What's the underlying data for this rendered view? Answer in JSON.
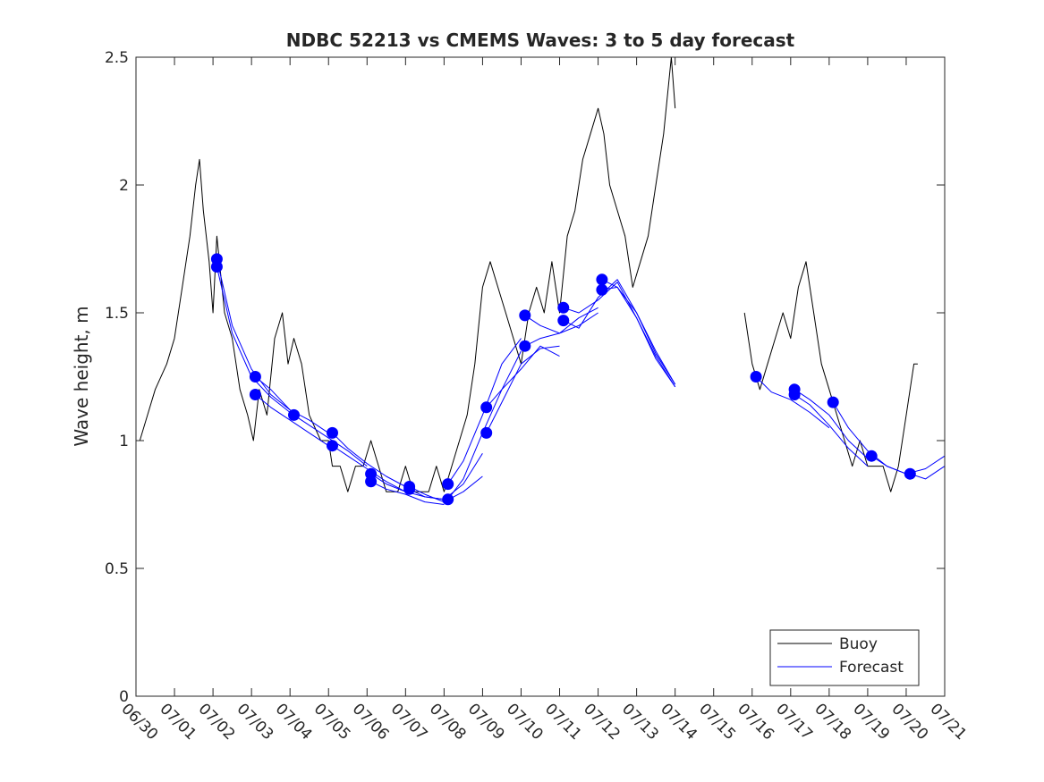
{
  "chart_data": {
    "type": "line",
    "title": "NDBC 52213 vs CMEMS Waves: 3 to 5 day forecast",
    "xlabel": "",
    "ylabel": "Wave height, m",
    "xlim": [
      0,
      21
    ],
    "ylim": [
      0,
      2.5
    ],
    "x_tick_labels": [
      "06/30",
      "07/01",
      "07/02",
      "07/03",
      "07/04",
      "07/05",
      "07/06",
      "07/07",
      "07/08",
      "07/09",
      "07/10",
      "07/11",
      "07/12",
      "07/13",
      "07/14",
      "07/15",
      "07/16",
      "07/17",
      "07/18",
      "07/19",
      "07/20",
      "07/21"
    ],
    "y_ticks": [
      0,
      0.5,
      1,
      1.5,
      2,
      2.5
    ],
    "y_tick_labels": [
      "0",
      "0.5",
      "1",
      "1.5",
      "2",
      "2.5"
    ],
    "legend": {
      "position": "bottom-right",
      "entries": [
        "Buoy",
        "Forecast"
      ]
    },
    "colors": {
      "buoy": "#000000",
      "forecast": "#0000ff"
    },
    "series": [
      {
        "name": "Buoy",
        "x": [
          0.1,
          0.3,
          0.5,
          0.8,
          1.0,
          1.2,
          1.4,
          1.55,
          1.65,
          1.75,
          1.9,
          2.0,
          2.1,
          2.3,
          2.5,
          2.7,
          2.9,
          3.05,
          3.2,
          3.4,
          3.6,
          3.8,
          3.95,
          4.1,
          4.3,
          4.5,
          4.8,
          5.0,
          5.1,
          5.3,
          5.5,
          5.7,
          5.9,
          6.1,
          6.3,
          6.5,
          6.8,
          7.0,
          7.2,
          7.4,
          7.6,
          7.8,
          8.0,
          8.2,
          8.4,
          8.6,
          8.8,
          9.0,
          9.2,
          9.4,
          9.6,
          9.8,
          10.0,
          10.2,
          10.4,
          10.6,
          10.8,
          11.0,
          11.2,
          11.4,
          11.6,
          11.8,
          12.0,
          12.15,
          12.3,
          12.5,
          12.7,
          12.9,
          13.1,
          13.3,
          13.5,
          13.7,
          13.9,
          14.0
        ],
        "y": [
          1.0,
          1.1,
          1.2,
          1.3,
          1.4,
          1.6,
          1.8,
          2.0,
          2.1,
          1.9,
          1.7,
          1.5,
          1.8,
          1.5,
          1.4,
          1.2,
          1.1,
          1.0,
          1.2,
          1.1,
          1.4,
          1.5,
          1.3,
          1.4,
          1.3,
          1.1,
          1.0,
          1.0,
          0.9,
          0.9,
          0.8,
          0.9,
          0.9,
          1.0,
          0.9,
          0.8,
          0.8,
          0.9,
          0.8,
          0.8,
          0.8,
          0.9,
          0.8,
          0.9,
          1.0,
          1.1,
          1.3,
          1.6,
          1.7,
          1.6,
          1.5,
          1.4,
          1.3,
          1.5,
          1.6,
          1.5,
          1.7,
          1.5,
          1.8,
          1.9,
          2.1,
          2.2,
          2.3,
          2.2,
          2.0,
          1.9,
          1.8,
          1.6,
          1.7,
          1.8,
          2.0,
          2.2,
          2.5,
          2.3
        ]
      },
      {
        "name": "Buoy",
        "x": [
          15.8,
          16.0,
          16.2,
          16.4,
          16.6,
          16.8,
          17.0,
          17.2,
          17.4,
          17.6,
          17.8,
          18.0,
          18.2,
          18.4,
          18.6,
          18.8,
          19.0,
          19.2,
          19.4,
          19.6,
          19.8,
          20.0,
          20.1,
          20.2,
          20.3
        ],
        "y": [
          1.5,
          1.3,
          1.2,
          1.3,
          1.4,
          1.5,
          1.4,
          1.6,
          1.7,
          1.5,
          1.3,
          1.2,
          1.1,
          1.0,
          0.9,
          1.0,
          0.9,
          0.9,
          0.9,
          0.8,
          0.9,
          1.1,
          1.2,
          1.3,
          1.3
        ]
      },
      {
        "name": "Forecast",
        "x": [
          2.1,
          2.5,
          3.0,
          3.5,
          4.0
        ],
        "y": [
          1.71,
          1.45,
          1.28,
          1.18,
          1.12
        ]
      },
      {
        "name": "Forecast",
        "x": [
          2.1,
          2.5,
          3.0,
          3.5,
          4.0
        ],
        "y": [
          1.68,
          1.42,
          1.25,
          1.17,
          1.11
        ]
      },
      {
        "name": "Forecast",
        "x": [
          3.1,
          3.5,
          4.0,
          4.5,
          5.0
        ],
        "y": [
          1.25,
          1.2,
          1.12,
          1.08,
          1.03
        ]
      },
      {
        "name": "Forecast",
        "x": [
          3.1,
          3.5,
          4.0,
          4.5,
          5.0
        ],
        "y": [
          1.18,
          1.13,
          1.08,
          1.03,
          0.98
        ]
      },
      {
        "name": "Forecast",
        "x": [
          4.1,
          4.5,
          5.0,
          5.5,
          6.0
        ],
        "y": [
          1.1,
          1.06,
          1.01,
          0.96,
          0.9
        ]
      },
      {
        "name": "Forecast",
        "x": [
          5.1,
          5.5,
          6.0,
          6.5,
          7.0
        ],
        "y": [
          1.03,
          0.97,
          0.91,
          0.86,
          0.82
        ]
      },
      {
        "name": "Forecast",
        "x": [
          5.1,
          5.5,
          6.0,
          6.5,
          7.0
        ],
        "y": [
          0.98,
          0.94,
          0.89,
          0.84,
          0.8
        ]
      },
      {
        "name": "Forecast",
        "x": [
          6.1,
          6.5,
          7.0,
          7.5,
          8.0
        ],
        "y": [
          0.87,
          0.83,
          0.8,
          0.78,
          0.77
        ]
      },
      {
        "name": "Forecast",
        "x": [
          6.1,
          6.5,
          7.0,
          7.5,
          8.0
        ],
        "y": [
          0.84,
          0.81,
          0.79,
          0.76,
          0.75
        ]
      },
      {
        "name": "Forecast",
        "x": [
          7.1,
          7.5,
          8.0,
          8.5,
          9.0
        ],
        "y": [
          0.82,
          0.79,
          0.76,
          0.8,
          0.86
        ]
      },
      {
        "name": "Forecast",
        "x": [
          7.1,
          7.5,
          8.0,
          8.5,
          9.0
        ],
        "y": [
          0.81,
          0.78,
          0.77,
          0.83,
          0.95
        ]
      },
      {
        "name": "Forecast",
        "x": [
          8.1,
          8.5,
          9.0,
          9.5,
          10.0
        ],
        "y": [
          0.83,
          0.92,
          1.1,
          1.3,
          1.4
        ]
      },
      {
        "name": "Forecast",
        "x": [
          8.1,
          8.5,
          9.0,
          9.5,
          10.0
        ],
        "y": [
          0.77,
          0.85,
          1.03,
          1.2,
          1.35
        ]
      },
      {
        "name": "Forecast",
        "x": [
          9.1,
          9.5,
          10.0,
          10.5,
          11.0
        ],
        "y": [
          1.13,
          1.2,
          1.28,
          1.37,
          1.33
        ]
      },
      {
        "name": "Forecast",
        "x": [
          9.1,
          9.5,
          10.0,
          10.5,
          11.0
        ],
        "y": [
          1.03,
          1.15,
          1.3,
          1.36,
          1.37
        ]
      },
      {
        "name": "Forecast",
        "x": [
          10.1,
          10.5,
          11.0,
          11.5,
          12.0
        ],
        "y": [
          1.49,
          1.45,
          1.42,
          1.48,
          1.52
        ]
      },
      {
        "name": "Forecast",
        "x": [
          10.1,
          10.5,
          11.0,
          11.5,
          12.0
        ],
        "y": [
          1.37,
          1.4,
          1.42,
          1.45,
          1.5
        ]
      },
      {
        "name": "Forecast",
        "x": [
          11.1,
          11.5,
          12.0,
          12.5,
          13.0,
          13.5,
          14.0
        ],
        "y": [
          1.52,
          1.5,
          1.55,
          1.62,
          1.48,
          1.32,
          1.21
        ]
      },
      {
        "name": "Forecast",
        "x": [
          11.1,
          11.5,
          12.0,
          12.5,
          13.0,
          13.5,
          14.0
        ],
        "y": [
          1.47,
          1.44,
          1.56,
          1.63,
          1.5,
          1.34,
          1.22
        ]
      },
      {
        "name": "Forecast",
        "x": [
          12.1,
          12.5,
          13.0,
          13.5,
          14.0
        ],
        "y": [
          1.63,
          1.6,
          1.48,
          1.33,
          1.21
        ]
      },
      {
        "name": "Forecast",
        "x": [
          12.1,
          12.5,
          13.0,
          13.5,
          14.0
        ],
        "y": [
          1.59,
          1.6,
          1.5,
          1.35,
          1.22
        ]
      },
      {
        "name": "Forecast",
        "x": [
          16.1,
          16.5,
          17.0,
          17.5,
          18.0
        ],
        "y": [
          1.25,
          1.19,
          1.16,
          1.11,
          1.05
        ]
      },
      {
        "name": "Forecast",
        "x": [
          17.1,
          17.5,
          18.0,
          18.5,
          19.0
        ],
        "y": [
          1.2,
          1.16,
          1.1,
          1.0,
          0.93
        ]
      },
      {
        "name": "Forecast",
        "x": [
          17.1,
          17.5,
          18.0,
          18.5,
          19.0
        ],
        "y": [
          1.18,
          1.14,
          1.06,
          0.97,
          0.9
        ]
      },
      {
        "name": "Forecast",
        "x": [
          18.1,
          18.5,
          19.0,
          19.5,
          20.0
        ],
        "y": [
          1.15,
          1.05,
          0.96,
          0.9,
          0.87
        ]
      },
      {
        "name": "Forecast",
        "x": [
          19.1,
          19.5,
          20.0,
          20.5,
          21.0
        ],
        "y": [
          0.94,
          0.9,
          0.87,
          0.89,
          0.94
        ]
      },
      {
        "name": "Forecast",
        "x": [
          20.1,
          20.5,
          21.0
        ],
        "y": [
          0.87,
          0.85,
          0.9
        ]
      }
    ],
    "markers": {
      "name": "Forecast",
      "x": [
        2.1,
        2.1,
        3.1,
        3.1,
        4.1,
        5.1,
        5.1,
        6.1,
        6.1,
        7.1,
        7.1,
        8.1,
        8.1,
        9.1,
        9.1,
        10.1,
        10.1,
        11.1,
        11.1,
        12.1,
        12.1,
        16.1,
        17.1,
        17.1,
        18.1,
        19.1,
        20.1
      ],
      "y": [
        1.71,
        1.68,
        1.25,
        1.18,
        1.1,
        1.03,
        0.98,
        0.87,
        0.84,
        0.82,
        0.81,
        0.83,
        0.77,
        1.13,
        1.03,
        1.49,
        1.37,
        1.52,
        1.47,
        1.63,
        1.59,
        1.25,
        1.2,
        1.18,
        1.15,
        0.94,
        0.87
      ]
    }
  }
}
